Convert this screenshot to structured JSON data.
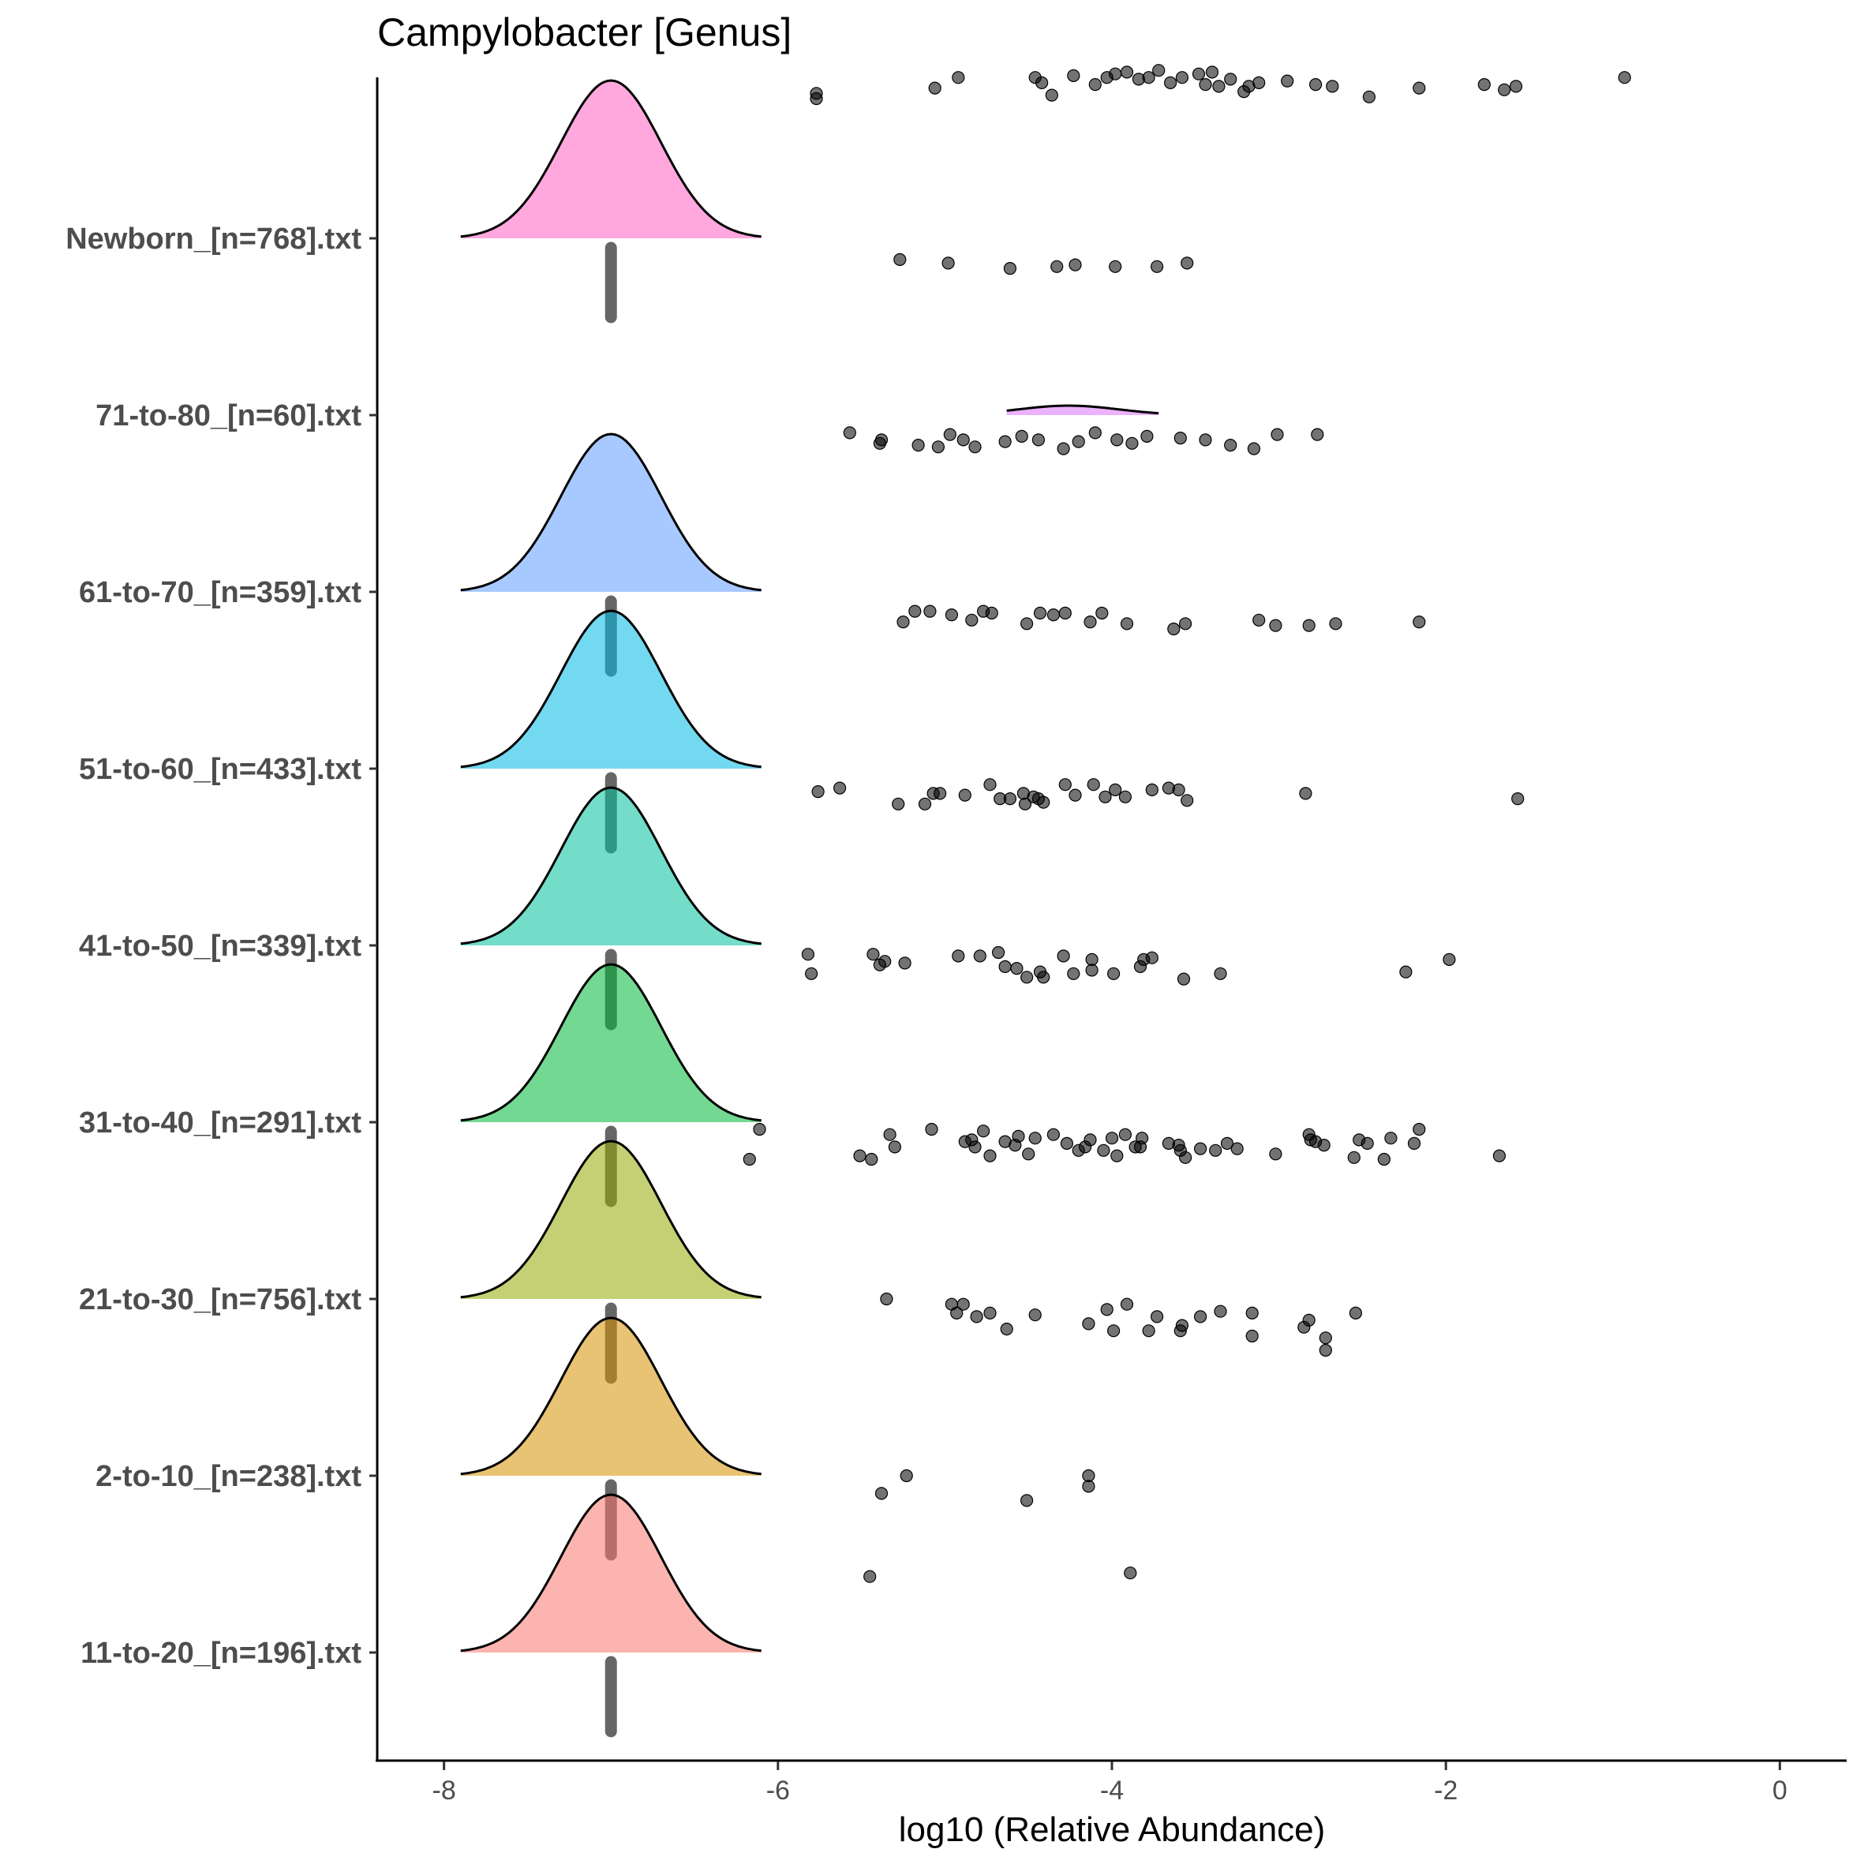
{
  "chart_data": {
    "type": "ridgeline-jitter",
    "title": "Campylobacter [Genus]",
    "xlabel": "log10 (Relative Abundance)",
    "ylabel": "",
    "xlim": [
      -8.4,
      0.4
    ],
    "xticks": [
      -8,
      -6,
      -4,
      -2,
      0
    ],
    "grid": false,
    "legend": "none",
    "categories": [
      {
        "label": "11-to-20_[n=196].txt",
        "color": "#f8766d",
        "mode": -7,
        "sd": 0.3,
        "peak": 1,
        "points": [
          [
            -5.23,
            1
          ],
          [
            -5.38,
            0.9
          ],
          [
            -5.45,
            0.43
          ],
          [
            -4.51,
            0.86
          ],
          [
            -4.14,
            1
          ],
          [
            -4.14,
            0.94
          ],
          [
            -3.89,
            0.45
          ]
        ]
      },
      {
        "label": "2-to-10_[n=238].txt",
        "color": "#d39200",
        "mode": -7,
        "sd": 0.3,
        "peak": 1,
        "points": [
          [
            -5.35,
            1
          ],
          [
            -4.93,
            0.92
          ],
          [
            -4.81,
            0.9
          ],
          [
            -4.96,
            0.97
          ],
          [
            -4.89,
            0.97
          ],
          [
            -4.73,
            0.92
          ],
          [
            -4.46,
            0.91
          ],
          [
            -4.63,
            0.83
          ],
          [
            -4.14,
            0.86
          ],
          [
            -4.03,
            0.94
          ],
          [
            -3.91,
            0.97
          ],
          [
            -3.99,
            0.82
          ],
          [
            -3.78,
            0.82
          ],
          [
            -3.73,
            0.9
          ],
          [
            -3.58,
            0.85
          ],
          [
            -3.59,
            0.82
          ],
          [
            -3.47,
            0.9
          ],
          [
            -3.35,
            0.93
          ],
          [
            -3.16,
            0.92
          ],
          [
            -3.16,
            0.79
          ],
          [
            -2.82,
            0.88
          ],
          [
            -2.72,
            0.78
          ],
          [
            -2.72,
            0.71
          ],
          [
            -2.54,
            0.92
          ],
          [
            -2.85,
            0.84
          ]
        ]
      },
      {
        "label": "21-to-30_[n=756].txt",
        "color": "#93aa00",
        "mode": -7,
        "sd": 0.3,
        "peak": 1,
        "points": [
          [
            -6.11,
            0.96
          ],
          [
            -6.17,
            0.79
          ],
          [
            -5.51,
            0.81
          ],
          [
            -5.44,
            0.79
          ],
          [
            -5.33,
            0.93
          ],
          [
            -5.3,
            0.86
          ],
          [
            -5.08,
            0.96
          ],
          [
            -4.88,
            0.89
          ],
          [
            -4.84,
            0.9
          ],
          [
            -4.77,
            0.95
          ],
          [
            -4.82,
            0.86
          ],
          [
            -4.73,
            0.81
          ],
          [
            -4.64,
            0.89
          ],
          [
            -4.58,
            0.87
          ],
          [
            -4.56,
            0.92
          ],
          [
            -4.46,
            0.91
          ],
          [
            -4.5,
            0.82
          ],
          [
            -4.35,
            0.93
          ],
          [
            -4.27,
            0.88
          ],
          [
            -4.2,
            0.84
          ],
          [
            -4.13,
            0.9
          ],
          [
            -4.16,
            0.86
          ],
          [
            -4.05,
            0.84
          ],
          [
            -4.0,
            0.91
          ],
          [
            -3.97,
            0.81
          ],
          [
            -3.92,
            0.93
          ],
          [
            -3.86,
            0.86
          ],
          [
            -3.83,
            0.86
          ],
          [
            -3.82,
            0.91
          ],
          [
            -3.66,
            0.88
          ],
          [
            -3.6,
            0.87
          ],
          [
            -3.59,
            0.84
          ],
          [
            -3.56,
            0.8
          ],
          [
            -3.47,
            0.85
          ],
          [
            -3.38,
            0.84
          ],
          [
            -3.31,
            0.88
          ],
          [
            -3.25,
            0.85
          ],
          [
            -3.02,
            0.82
          ],
          [
            -2.82,
            0.93
          ],
          [
            -2.81,
            0.9
          ],
          [
            -2.78,
            0.89
          ],
          [
            -2.73,
            0.87
          ],
          [
            -2.55,
            0.8
          ],
          [
            -2.52,
            0.9
          ],
          [
            -2.47,
            0.88
          ],
          [
            -2.37,
            0.79
          ],
          [
            -2.33,
            0.91
          ],
          [
            -2.19,
            0.88
          ],
          [
            -2.16,
            0.96
          ],
          [
            -1.68,
            0.81
          ]
        ]
      },
      {
        "label": "31-to-40_[n=291].txt",
        "color": "#00ba38",
        "mode": -7,
        "sd": 0.3,
        "peak": 1,
        "points": [
          [
            -5.82,
            0.95
          ],
          [
            -5.8,
            0.84
          ],
          [
            -5.43,
            0.95
          ],
          [
            -5.39,
            0.89
          ],
          [
            -5.36,
            0.91
          ],
          [
            -5.24,
            0.9
          ],
          [
            -4.92,
            0.94
          ],
          [
            -4.79,
            0.94
          ],
          [
            -4.68,
            0.96
          ],
          [
            -4.64,
            0.88
          ],
          [
            -4.57,
            0.87
          ],
          [
            -4.51,
            0.82
          ],
          [
            -4.43,
            0.85
          ],
          [
            -4.41,
            0.82
          ],
          [
            -4.29,
            0.94
          ],
          [
            -4.23,
            0.84
          ],
          [
            -4.12,
            0.92
          ],
          [
            -4.12,
            0.86
          ],
          [
            -3.99,
            0.84
          ],
          [
            -3.83,
            0.88
          ],
          [
            -3.81,
            0.92
          ],
          [
            -3.76,
            0.93
          ],
          [
            -3.57,
            0.81
          ],
          [
            -3.35,
            0.84
          ],
          [
            -2.24,
            0.85
          ],
          [
            -1.98,
            0.92
          ]
        ]
      },
      {
        "label": "41-to-50_[n=339].txt",
        "color": "#00c19f",
        "mode": -7,
        "sd": 0.3,
        "peak": 1,
        "points": [
          [
            -5.76,
            0.87
          ],
          [
            -5.63,
            0.89
          ],
          [
            -5.28,
            0.8
          ],
          [
            -5.12,
            0.8
          ],
          [
            -5.07,
            0.86
          ],
          [
            -5.03,
            0.86
          ],
          [
            -4.88,
            0.85
          ],
          [
            -4.73,
            0.91
          ],
          [
            -4.67,
            0.83
          ],
          [
            -4.61,
            0.83
          ],
          [
            -4.53,
            0.86
          ],
          [
            -4.52,
            0.8
          ],
          [
            -4.47,
            0.84
          ],
          [
            -4.44,
            0.83
          ],
          [
            -4.41,
            0.81
          ],
          [
            -4.28,
            0.91
          ],
          [
            -4.22,
            0.85
          ],
          [
            -4.11,
            0.91
          ],
          [
            -4.04,
            0.84
          ],
          [
            -3.98,
            0.88
          ],
          [
            -3.92,
            0.84
          ],
          [
            -3.76,
            0.88
          ],
          [
            -3.66,
            0.89
          ],
          [
            -3.6,
            0.88
          ],
          [
            -3.55,
            0.82
          ],
          [
            -2.84,
            0.86
          ],
          [
            -1.57,
            0.83
          ]
        ]
      },
      {
        "label": "51-to-60_[n=433].txt",
        "color": "#00b9e3",
        "mode": -7,
        "sd": 0.3,
        "peak": 1,
        "points": [
          [
            -5.18,
            0.89
          ],
          [
            -5.09,
            0.89
          ],
          [
            -5.25,
            0.83
          ],
          [
            -4.96,
            0.87
          ],
          [
            -4.84,
            0.84
          ],
          [
            -4.77,
            0.89
          ],
          [
            -4.72,
            0.88
          ],
          [
            -4.51,
            0.82
          ],
          [
            -4.43,
            0.88
          ],
          [
            -4.35,
            0.87
          ],
          [
            -4.28,
            0.88
          ],
          [
            -4.13,
            0.83
          ],
          [
            -4.06,
            0.88
          ],
          [
            -3.91,
            0.82
          ],
          [
            -3.63,
            0.79
          ],
          [
            -3.56,
            0.82
          ],
          [
            -3.12,
            0.84
          ],
          [
            -3.02,
            0.81
          ],
          [
            -2.82,
            0.81
          ],
          [
            -2.66,
            0.82
          ],
          [
            -2.16,
            0.83
          ]
        ]
      },
      {
        "label": "61-to-70_[n=359].txt",
        "color": "#619cff",
        "mode": -7,
        "sd": 0.3,
        "peak": 1,
        "points": [
          [
            -5.57,
            0.9
          ],
          [
            -5.38,
            0.86
          ],
          [
            -5.39,
            0.84
          ],
          [
            -5.16,
            0.83
          ],
          [
            -5.04,
            0.82
          ],
          [
            -4.97,
            0.89
          ],
          [
            -4.89,
            0.86
          ],
          [
            -4.82,
            0.82
          ],
          [
            -4.64,
            0.85
          ],
          [
            -4.54,
            0.88
          ],
          [
            -4.44,
            0.86
          ],
          [
            -4.29,
            0.81
          ],
          [
            -4.2,
            0.85
          ],
          [
            -4.1,
            0.9
          ],
          [
            -3.97,
            0.86
          ],
          [
            -3.88,
            0.84
          ],
          [
            -3.79,
            0.88
          ],
          [
            -3.59,
            0.87
          ],
          [
            -3.44,
            0.86
          ],
          [
            -3.29,
            0.83
          ],
          [
            -3.15,
            0.81
          ],
          [
            -3.01,
            0.89
          ],
          [
            -2.77,
            0.89
          ]
        ]
      },
      {
        "label": "71-to-80_[n=60].txt",
        "color": "#db72fb",
        "mode": -4.26,
        "sd": 0.3,
        "peak": 0.06,
        "range": [
          -4.63,
          -3.72
        ],
        "points": [
          [
            -5.27,
            0.88
          ],
          [
            -4.98,
            0.86
          ],
          [
            -4.61,
            0.83
          ],
          [
            -4.33,
            0.84
          ],
          [
            -4.22,
            0.85
          ],
          [
            -3.98,
            0.84
          ],
          [
            -3.73,
            0.84
          ],
          [
            -3.55,
            0.86
          ]
        ]
      },
      {
        "label": "Newborn_[n=768].txt",
        "color": "#ff61c3",
        "mode": -7,
        "sd": 0.3,
        "peak": 1,
        "points": [
          [
            -5.77,
            0.82
          ],
          [
            -5.77,
            0.79
          ],
          [
            -5.06,
            0.85
          ],
          [
            -4.92,
            0.91
          ],
          [
            -4.46,
            0.91
          ],
          [
            -4.42,
            0.88
          ],
          [
            -4.36,
            0.81
          ],
          [
            -4.23,
            0.92
          ],
          [
            -4.1,
            0.87
          ],
          [
            -4.03,
            0.91
          ],
          [
            -3.98,
            0.93
          ],
          [
            -3.91,
            0.94
          ],
          [
            -3.84,
            0.9
          ],
          [
            -3.78,
            0.91
          ],
          [
            -3.72,
            0.95
          ],
          [
            -3.65,
            0.88
          ],
          [
            -3.58,
            0.91
          ],
          [
            -3.48,
            0.93
          ],
          [
            -3.44,
            0.87
          ],
          [
            -3.4,
            0.94
          ],
          [
            -3.36,
            0.86
          ],
          [
            -3.29,
            0.9
          ],
          [
            -3.21,
            0.83
          ],
          [
            -3.18,
            0.86
          ],
          [
            -3.12,
            0.88
          ],
          [
            -2.95,
            0.89
          ],
          [
            -2.78,
            0.87
          ],
          [
            -2.68,
            0.86
          ],
          [
            -2.46,
            0.8
          ],
          [
            -2.16,
            0.85
          ],
          [
            -1.77,
            0.87
          ],
          [
            -1.65,
            0.84
          ],
          [
            -1.58,
            0.86
          ],
          [
            -0.93,
            0.91
          ]
        ]
      }
    ]
  }
}
